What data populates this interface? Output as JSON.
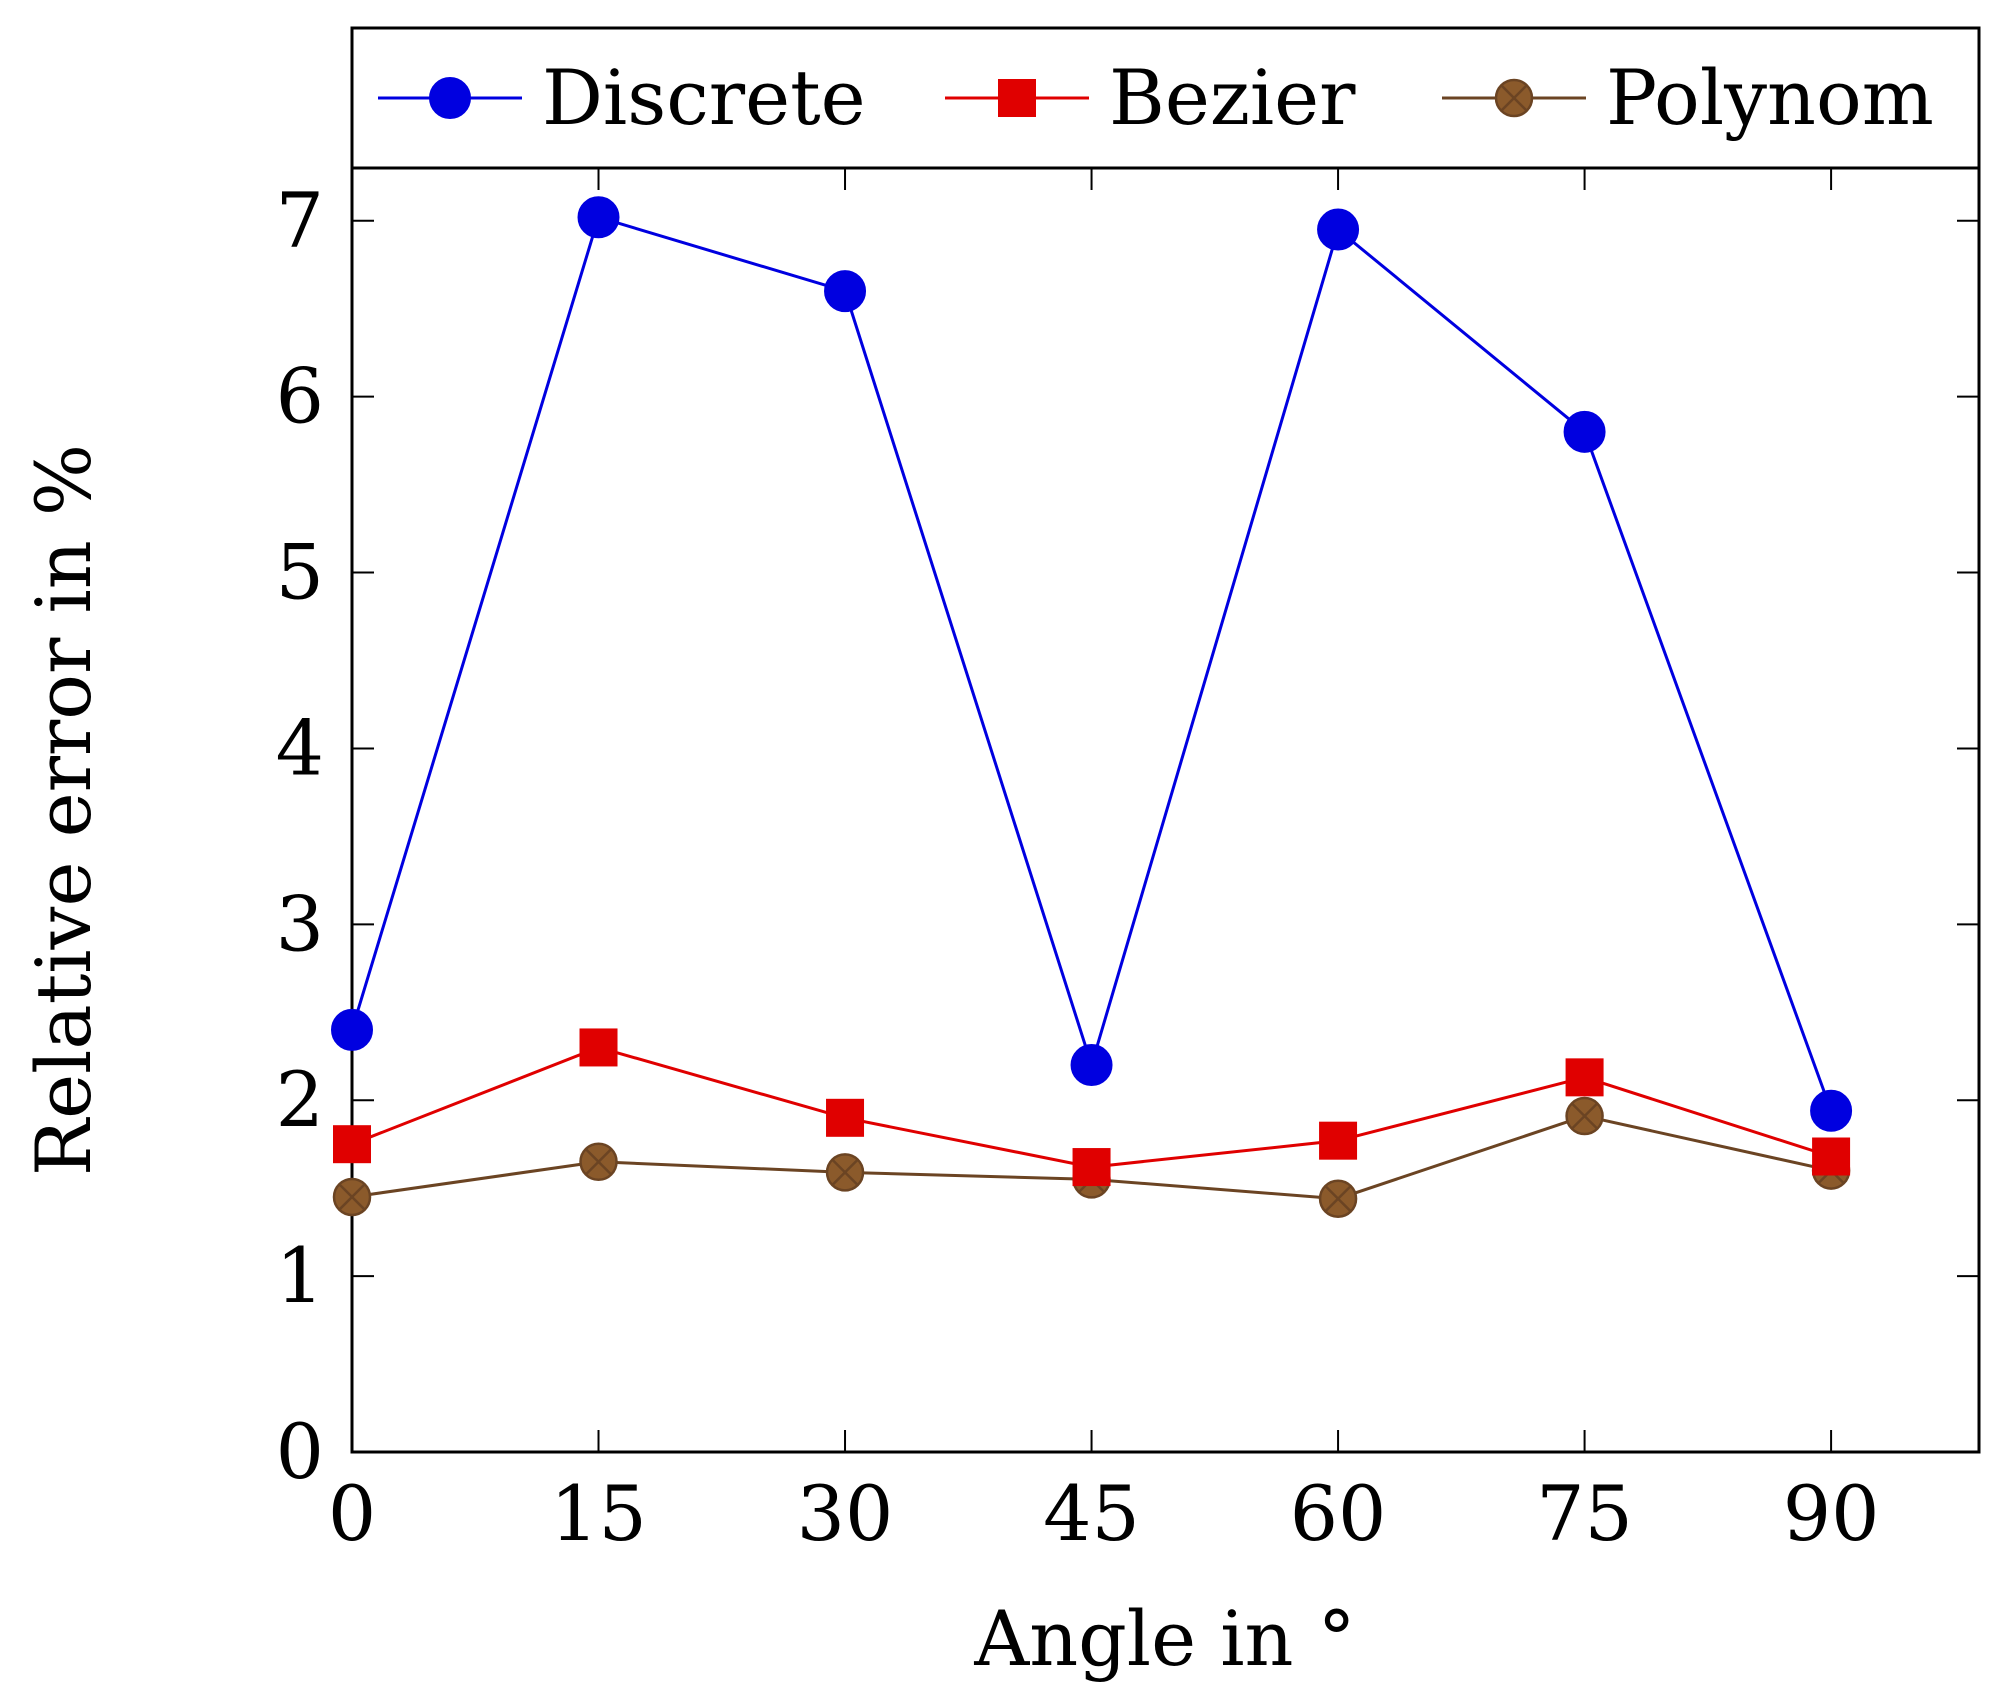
{
  "chart_data": {
    "type": "line",
    "title": "",
    "xlabel": "Angle in °",
    "ylabel": "Relative error in %",
    "x": [
      0,
      15,
      30,
      45,
      60,
      75,
      90
    ],
    "x_ticks": [
      "0",
      "15",
      "30",
      "45",
      "60",
      "75",
      "90"
    ],
    "y_ticks": [
      "0",
      "1",
      "2",
      "3",
      "4",
      "5",
      "6",
      "7"
    ],
    "xlim": [
      0,
      99
    ],
    "ylim": [
      0,
      7.3
    ],
    "grid": false,
    "legend_placement": "top",
    "series": [
      {
        "name": "Discrete",
        "color": "#0000e0",
        "marker": "circle",
        "values": [
          2.4,
          7.02,
          6.6,
          2.2,
          6.95,
          5.8,
          1.94
        ]
      },
      {
        "name": "Bezier",
        "color": "#e00000",
        "marker": "square",
        "values": [
          1.75,
          2.3,
          1.9,
          1.62,
          1.77,
          2.13,
          1.68
        ]
      },
      {
        "name": "Polynom",
        "color": "#6b4423",
        "marker_fill": "#8b5a2b",
        "marker": "circle-x",
        "values": [
          1.45,
          1.65,
          1.59,
          1.55,
          1.44,
          1.91,
          1.6
        ]
      }
    ]
  }
}
